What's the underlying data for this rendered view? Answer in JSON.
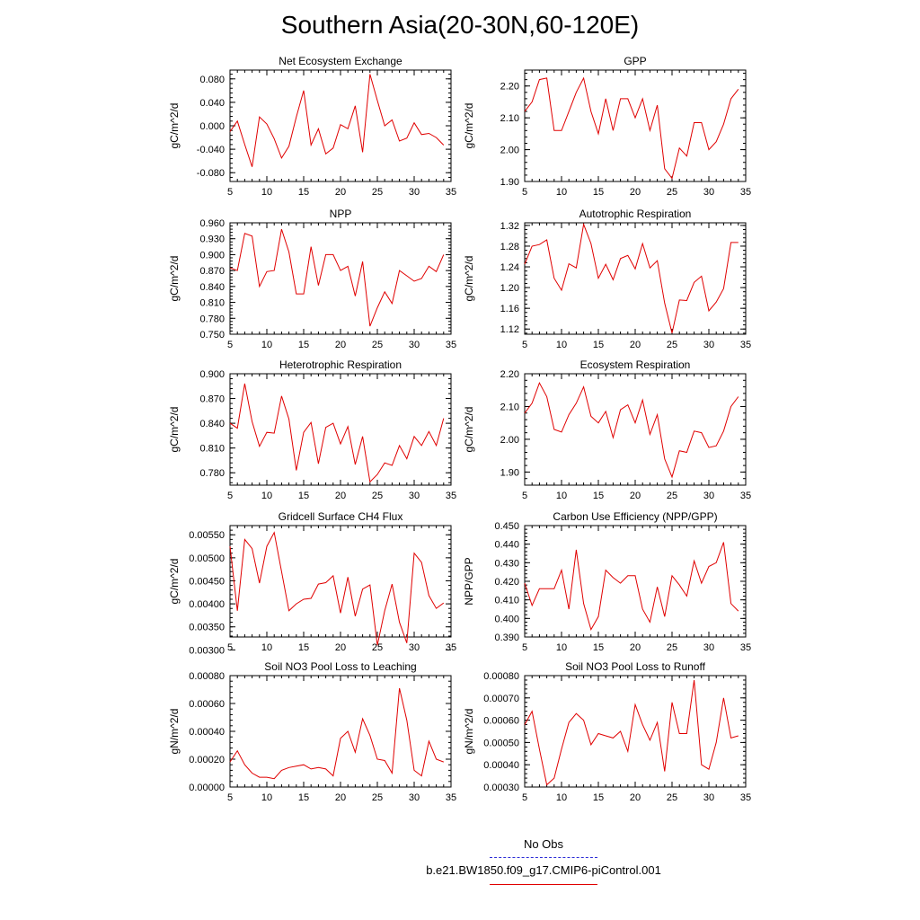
{
  "title": "Southern Asia(20-30N,60-120E)",
  "legend": {
    "obs_label": "No Obs",
    "run_label": "b.e21.BW1850.f09_g17.CMIP6-piControl.001",
    "obs_color": "#2b2bd6",
    "run_color": "#e00000"
  },
  "chart_data": [
    {
      "type": "line",
      "title": "Net Ecosystem Exchange",
      "xlabel": "",
      "ylabel": "gC/m^2/d",
      "xlim": [
        5,
        35
      ],
      "ylim": [
        -0.095,
        0.095
      ],
      "x_ticks": [
        "5",
        "10",
        "15",
        "20",
        "25",
        "30",
        "35"
      ],
      "y_ticks": [
        "-0.080",
        "-0.040",
        "0.000",
        "0.040",
        "0.080"
      ],
      "y_tick_values": [
        -0.08,
        -0.04,
        0.0,
        0.04,
        0.08
      ],
      "series": [
        {
          "color": "#e00000",
          "x": [
            5,
            6,
            7,
            8,
            9,
            10,
            11,
            12,
            13,
            14,
            15,
            16,
            17,
            18,
            19,
            20,
            21,
            22,
            23,
            24,
            25,
            26,
            27,
            28,
            29,
            30,
            31,
            32,
            33,
            34
          ],
          "values": [
            -0.01,
            0.008,
            -0.032,
            -0.07,
            0.015,
            0.003,
            -0.022,
            -0.055,
            -0.035,
            0.015,
            0.06,
            -0.033,
            -0.005,
            -0.048,
            -0.038,
            0.002,
            -0.005,
            0.034,
            -0.045,
            0.088,
            0.043,
            0.0,
            0.01,
            -0.026,
            -0.021,
            0.005,
            -0.015,
            -0.013,
            -0.02,
            -0.033
          ]
        }
      ]
    },
    {
      "type": "line",
      "title": "GPP",
      "xlabel": "",
      "ylabel": "gC/m^2/d",
      "xlim": [
        5,
        35
      ],
      "ylim": [
        1.9,
        2.25
      ],
      "x_ticks": [
        "5",
        "10",
        "15",
        "20",
        "25",
        "30",
        "35"
      ],
      "y_ticks": [
        "1.90",
        "2.00",
        "2.10",
        "2.20"
      ],
      "y_tick_values": [
        1.9,
        2.0,
        2.1,
        2.2
      ],
      "series": [
        {
          "color": "#e00000",
          "x": [
            5,
            6,
            7,
            8,
            9,
            10,
            11,
            12,
            13,
            14,
            15,
            16,
            17,
            18,
            19,
            20,
            21,
            22,
            23,
            24,
            25,
            26,
            27,
            28,
            29,
            30,
            31,
            32,
            33,
            34
          ],
          "values": [
            2.12,
            2.15,
            2.22,
            2.225,
            2.06,
            2.06,
            2.12,
            2.18,
            2.225,
            2.12,
            2.05,
            2.16,
            2.06,
            2.16,
            2.16,
            2.1,
            2.16,
            2.06,
            2.14,
            1.94,
            1.91,
            2.005,
            1.98,
            2.085,
            2.085,
            2.0,
            2.025,
            2.08,
            2.16,
            2.19
          ]
        }
      ]
    },
    {
      "type": "line",
      "title": "NPP",
      "xlabel": "",
      "ylabel": "gC/m^2/d",
      "xlim": [
        5,
        35
      ],
      "ylim": [
        0.75,
        0.96
      ],
      "x_ticks": [
        "5",
        "10",
        "15",
        "20",
        "25",
        "30",
        "35"
      ],
      "y_ticks": [
        "0.750",
        "0.780",
        "0.810",
        "0.840",
        "0.870",
        "0.900",
        "0.930",
        "0.960"
      ],
      "y_tick_values": [
        0.75,
        0.78,
        0.81,
        0.84,
        0.87,
        0.9,
        0.93,
        0.96
      ],
      "series": [
        {
          "color": "#e00000",
          "x": [
            5,
            6,
            7,
            8,
            9,
            10,
            11,
            12,
            13,
            14,
            15,
            16,
            17,
            18,
            19,
            20,
            21,
            22,
            23,
            24,
            25,
            26,
            27,
            28,
            29,
            30,
            31,
            32,
            33,
            34
          ],
          "values": [
            0.875,
            0.87,
            0.94,
            0.935,
            0.84,
            0.868,
            0.87,
            0.948,
            0.905,
            0.826,
            0.826,
            0.915,
            0.842,
            0.9,
            0.9,
            0.87,
            0.878,
            0.822,
            0.887,
            0.765,
            0.8,
            0.83,
            0.808,
            0.87,
            0.86,
            0.85,
            0.855,
            0.878,
            0.868,
            0.9
          ]
        }
      ]
    },
    {
      "type": "line",
      "title": "Autotrophic Respiration",
      "xlabel": "",
      "ylabel": "gC/m^2/d",
      "xlim": [
        5,
        35
      ],
      "ylim": [
        1.11,
        1.325
      ],
      "x_ticks": [
        "5",
        "10",
        "15",
        "20",
        "25",
        "30",
        "35"
      ],
      "y_ticks": [
        "1.12",
        "1.16",
        "1.20",
        "1.24",
        "1.28",
        "1.32"
      ],
      "y_tick_values": [
        1.12,
        1.16,
        1.2,
        1.24,
        1.28,
        1.32
      ],
      "series": [
        {
          "color": "#e00000",
          "x": [
            5,
            6,
            7,
            8,
            9,
            10,
            11,
            12,
            13,
            14,
            15,
            16,
            17,
            18,
            19,
            20,
            21,
            22,
            23,
            24,
            25,
            26,
            27,
            28,
            29,
            30,
            31,
            32,
            33,
            34
          ],
          "values": [
            1.245,
            1.28,
            1.283,
            1.292,
            1.218,
            1.195,
            1.246,
            1.238,
            1.322,
            1.285,
            1.218,
            1.245,
            1.215,
            1.256,
            1.262,
            1.236,
            1.285,
            1.238,
            1.252,
            1.17,
            1.112,
            1.176,
            1.175,
            1.21,
            1.222,
            1.155,
            1.172,
            1.198,
            1.287,
            1.287
          ]
        }
      ]
    },
    {
      "type": "line",
      "title": "Heterotrophic Respiration",
      "xlabel": "",
      "ylabel": "gC/m^2/d",
      "xlim": [
        5,
        35
      ],
      "ylim": [
        0.765,
        0.9
      ],
      "x_ticks": [
        "5",
        "10",
        "15",
        "20",
        "25",
        "30",
        "35"
      ],
      "y_ticks": [
        "0.780",
        "0.810",
        "0.840",
        "0.870",
        "0.900"
      ],
      "y_tick_values": [
        0.78,
        0.81,
        0.84,
        0.87,
        0.9
      ],
      "series": [
        {
          "color": "#e00000",
          "x": [
            5,
            6,
            7,
            8,
            9,
            10,
            11,
            12,
            13,
            14,
            15,
            16,
            17,
            18,
            19,
            20,
            21,
            22,
            23,
            24,
            25,
            26,
            27,
            28,
            29,
            30,
            31,
            32,
            33,
            34
          ],
          "values": [
            0.84,
            0.834,
            0.888,
            0.842,
            0.812,
            0.829,
            0.828,
            0.873,
            0.845,
            0.783,
            0.829,
            0.841,
            0.791,
            0.835,
            0.84,
            0.815,
            0.836,
            0.79,
            0.824,
            0.769,
            0.778,
            0.792,
            0.789,
            0.813,
            0.797,
            0.824,
            0.813,
            0.83,
            0.813,
            0.846
          ]
        }
      ]
    },
    {
      "type": "line",
      "title": "Ecosystem Respiration",
      "xlabel": "",
      "ylabel": "gC/m^2/d",
      "xlim": [
        5,
        35
      ],
      "ylim": [
        1.86,
        2.2
      ],
      "x_ticks": [
        "5",
        "10",
        "15",
        "20",
        "25",
        "30",
        "35"
      ],
      "y_ticks": [
        "1.90",
        "2.00",
        "2.10",
        "2.20"
      ],
      "y_tick_values": [
        1.9,
        2.0,
        2.1,
        2.2
      ],
      "series": [
        {
          "color": "#e00000",
          "x": [
            5,
            6,
            7,
            8,
            9,
            10,
            11,
            12,
            13,
            14,
            15,
            16,
            17,
            18,
            19,
            20,
            21,
            22,
            23,
            24,
            25,
            26,
            27,
            28,
            29,
            30,
            31,
            32,
            33,
            34
          ],
          "values": [
            2.08,
            2.11,
            2.172,
            2.13,
            2.03,
            2.022,
            2.075,
            2.11,
            2.16,
            2.07,
            2.05,
            2.085,
            2.005,
            2.09,
            2.105,
            2.05,
            2.12,
            2.015,
            2.075,
            1.94,
            1.885,
            1.965,
            1.96,
            2.025,
            2.02,
            1.975,
            1.98,
            2.025,
            2.1,
            2.13
          ]
        }
      ]
    },
    {
      "type": "line",
      "title": "Gridcell Surface CH4 Flux",
      "xlabel": "",
      "ylabel": "gC/m^2/d",
      "xlim": [
        5,
        35
      ],
      "ylim": [
        0.00328,
        0.0057
      ],
      "x_ticks": [
        "5",
        "10",
        "15",
        "20",
        "25",
        "30",
        "35"
      ],
      "y_ticks": [
        "0.00300",
        "0.00350",
        "0.00400",
        "0.00450",
        "0.00500",
        "0.00550"
      ],
      "y_tick_values": [
        0.003,
        0.0035,
        0.004,
        0.0045,
        0.005,
        0.0055
      ],
      "series": [
        {
          "color": "#e00000",
          "x": [
            5,
            6,
            7,
            8,
            9,
            10,
            11,
            12,
            13,
            14,
            15,
            16,
            17,
            18,
            19,
            20,
            21,
            22,
            23,
            24,
            25,
            26,
            27,
            28,
            29,
            30,
            31,
            32,
            33,
            34
          ],
          "values": [
            0.00525,
            0.00385,
            0.0054,
            0.0052,
            0.00445,
            0.00525,
            0.00555,
            0.0047,
            0.00385,
            0.004,
            0.0041,
            0.00412,
            0.00443,
            0.00446,
            0.00461,
            0.0038,
            0.00458,
            0.00373,
            0.00432,
            0.00441,
            0.0031,
            0.00385,
            0.00443,
            0.0036,
            0.00315,
            0.0051,
            0.0049,
            0.00418,
            0.0039,
            0.00402
          ]
        }
      ]
    },
    {
      "type": "line",
      "title": "Carbon Use Efficiency (NPP/GPP)",
      "xlabel": "",
      "ylabel": "NPP/GPP",
      "xlim": [
        5,
        35
      ],
      "ylim": [
        0.39,
        0.45
      ],
      "x_ticks": [
        "5",
        "10",
        "15",
        "20",
        "25",
        "30",
        "35"
      ],
      "y_ticks": [
        "0.390",
        "0.400",
        "0.410",
        "0.420",
        "0.430",
        "0.440",
        "0.450"
      ],
      "y_tick_values": [
        0.39,
        0.4,
        0.41,
        0.42,
        0.43,
        0.44,
        0.45
      ],
      "series": [
        {
          "color": "#e00000",
          "x": [
            5,
            6,
            7,
            8,
            9,
            10,
            11,
            12,
            13,
            14,
            15,
            16,
            17,
            18,
            19,
            20,
            21,
            22,
            23,
            24,
            25,
            26,
            27,
            28,
            29,
            30,
            31,
            32,
            33,
            34
          ],
          "values": [
            0.419,
            0.407,
            0.416,
            0.416,
            0.416,
            0.426,
            0.405,
            0.437,
            0.408,
            0.394,
            0.401,
            0.426,
            0.422,
            0.419,
            0.423,
            0.423,
            0.405,
            0.398,
            0.417,
            0.401,
            0.423,
            0.418,
            0.412,
            0.431,
            0.419,
            0.428,
            0.43,
            0.441,
            0.408,
            0.404
          ]
        }
      ]
    },
    {
      "type": "line",
      "title": "Soil NO3 Pool Loss to Leaching",
      "xlabel": "",
      "ylabel": "gN/m^2/d",
      "xlim": [
        5,
        35
      ],
      "ylim": [
        0.0,
        0.0008
      ],
      "x_ticks": [
        "5",
        "10",
        "15",
        "20",
        "25",
        "30",
        "35"
      ],
      "y_ticks": [
        "0.00000",
        "0.00020",
        "0.00040",
        "0.00060",
        "0.00080"
      ],
      "y_tick_values": [
        0.0,
        0.0002,
        0.0004,
        0.0006,
        0.0008
      ],
      "series": [
        {
          "color": "#e00000",
          "x": [
            5,
            6,
            7,
            8,
            9,
            10,
            11,
            12,
            13,
            14,
            15,
            16,
            17,
            18,
            19,
            20,
            21,
            22,
            23,
            24,
            25,
            26,
            27,
            28,
            29,
            30,
            31,
            32,
            33,
            34
          ],
          "values": [
            0.00018,
            0.00026,
            0.00016,
            0.0001,
            7e-05,
            7e-05,
            6e-05,
            0.00012,
            0.00014,
            0.00015,
            0.00016,
            0.00013,
            0.00014,
            0.00013,
            8e-05,
            0.00035,
            0.0004,
            0.00025,
            0.00049,
            0.00037,
            0.0002,
            0.00019,
            0.0001,
            0.00071,
            0.00048,
            0.00012,
            8e-05,
            0.00033,
            0.0002,
            0.00018
          ]
        }
      ]
    },
    {
      "type": "line",
      "title": "Soil NO3 Pool Loss to Runoff",
      "xlabel": "",
      "ylabel": "gN/m^2/d",
      "xlim": [
        5,
        35
      ],
      "ylim": [
        0.0003,
        0.0008
      ],
      "x_ticks": [
        "5",
        "10",
        "15",
        "20",
        "25",
        "30",
        "35"
      ],
      "y_ticks": [
        "0.00030",
        "0.00040",
        "0.00050",
        "0.00060",
        "0.00070",
        "0.00080"
      ],
      "y_tick_values": [
        0.0003,
        0.0004,
        0.0005,
        0.0006,
        0.0007,
        0.0008
      ],
      "series": [
        {
          "color": "#e00000",
          "x": [
            5,
            6,
            7,
            8,
            9,
            10,
            11,
            12,
            13,
            14,
            15,
            16,
            17,
            18,
            19,
            20,
            21,
            22,
            23,
            24,
            25,
            26,
            27,
            28,
            29,
            30,
            31,
            32,
            33,
            34
          ],
          "values": [
            0.00058,
            0.00064,
            0.00047,
            0.00031,
            0.00034,
            0.00047,
            0.00059,
            0.00063,
            0.0006,
            0.00049,
            0.00054,
            0.00053,
            0.00052,
            0.00055,
            0.00046,
            0.00067,
            0.00058,
            0.00051,
            0.00059,
            0.00037,
            0.00068,
            0.00054,
            0.00054,
            0.00078,
            0.0004,
            0.00038,
            0.0005,
            0.0007,
            0.00052,
            0.00053
          ]
        }
      ]
    }
  ]
}
